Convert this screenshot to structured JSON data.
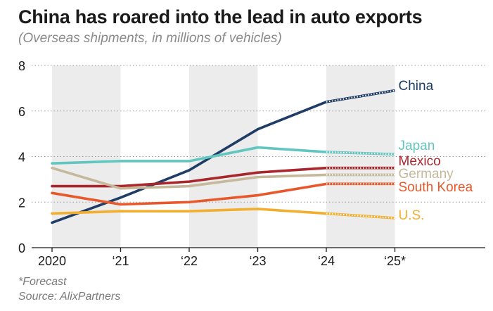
{
  "title": "China has roared into the lead in auto exports",
  "subtitle": "(Overseas shipments, in millions of vehicles)",
  "footnotes": [
    "*Forecast",
    "Source: AlixPartners"
  ],
  "chart_data": {
    "type": "line",
    "x": [
      "2020",
      "‘21",
      "‘22",
      "‘23",
      "‘24",
      "‘25*"
    ],
    "ylim": [
      0,
      8
    ],
    "yticks": [
      0,
      2,
      4,
      6,
      8
    ],
    "grid": true,
    "forecast_last_point": true,
    "series": [
      {
        "name": "China",
        "color": "#1f3d66",
        "values": [
          1.1,
          2.2,
          3.4,
          5.2,
          6.4,
          6.9
        ]
      },
      {
        "name": "Japan",
        "color": "#62c6c0",
        "values": [
          3.7,
          3.8,
          3.8,
          4.4,
          4.2,
          4.1
        ]
      },
      {
        "name": "Mexico",
        "color": "#a8262c",
        "values": [
          2.7,
          2.7,
          2.9,
          3.3,
          3.5,
          3.5
        ]
      },
      {
        "name": "Germany",
        "color": "#c6b89a",
        "values": [
          3.5,
          2.6,
          2.7,
          3.1,
          3.2,
          3.2
        ]
      },
      {
        "name": "South Korea",
        "color": "#e8582a",
        "values": [
          2.4,
          1.9,
          2.0,
          2.3,
          2.8,
          2.8
        ]
      },
      {
        "name": "U.S.",
        "color": "#f2ae2e",
        "values": [
          1.5,
          1.6,
          1.6,
          1.7,
          1.5,
          1.3
        ]
      }
    ]
  }
}
